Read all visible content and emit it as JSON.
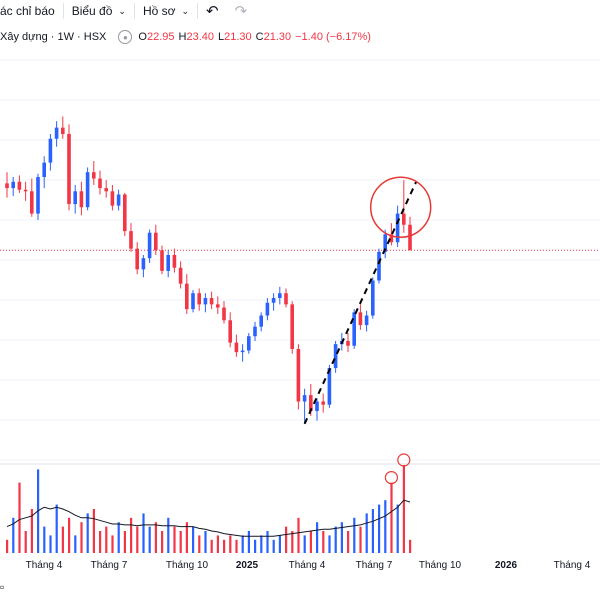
{
  "toolbar": {
    "indicators_label": "ác chỉ báo",
    "chart_label": "Biểu đồ",
    "profile_label": "Hồ sơ",
    "undo_icon": "undo-icon",
    "redo_icon": "redo-icon"
  },
  "legend": {
    "symbol": "Xây dựng · 1W · HSX",
    "o_label": "O",
    "o_value": "22.95",
    "h_label": "H",
    "h_value": "23.40",
    "l_label": "L",
    "l_value": "21.30",
    "c_label": "C",
    "c_value": "21.30",
    "change": "−1.40 (−6.17%)"
  },
  "colors": {
    "up": "#2962ff",
    "down": "#f23645",
    "ma_line": "#131722",
    "annotation": "#e53935",
    "grid": "#f0f3fa"
  },
  "chart_data": {
    "type": "candlestick",
    "x_tick_labels": [
      "Tháng 4",
      "Tháng 7",
      "Tháng 10",
      "2025",
      "Tháng 4",
      "Tháng 7",
      "Tháng 10",
      "2026",
      "Tháng 4"
    ],
    "y_range": [
      8,
      34
    ],
    "last_price": 21.3,
    "candles": [
      [
        25.5,
        26.2,
        24.6,
        25.2
      ],
      [
        25.2,
        25.9,
        24.7,
        25.6
      ],
      [
        25.6,
        26.0,
        24.9,
        25.1
      ],
      [
        25.1,
        25.6,
        24.4,
        25.0
      ],
      [
        25.0,
        25.8,
        23.4,
        23.6
      ],
      [
        23.6,
        26.1,
        23.2,
        25.9
      ],
      [
        25.9,
        27.2,
        25.2,
        26.8
      ],
      [
        26.8,
        28.6,
        26.3,
        28.3
      ],
      [
        28.3,
        29.4,
        27.8,
        29.0
      ],
      [
        29.0,
        29.7,
        28.3,
        28.6
      ],
      [
        28.6,
        29.2,
        23.8,
        24.2
      ],
      [
        24.2,
        25.4,
        23.6,
        25.0
      ],
      [
        25.0,
        25.6,
        23.5,
        24.0
      ],
      [
        24.0,
        26.5,
        23.8,
        26.2
      ],
      [
        26.2,
        26.9,
        25.4,
        25.8
      ],
      [
        25.8,
        26.3,
        24.8,
        25.2
      ],
      [
        25.2,
        25.7,
        24.6,
        25.0
      ],
      [
        25.0,
        25.4,
        23.8,
        24.1
      ],
      [
        24.1,
        25.1,
        23.8,
        24.8
      ],
      [
        24.8,
        24.9,
        22.2,
        22.5
      ],
      [
        22.5,
        23.0,
        21.2,
        21.4
      ],
      [
        21.4,
        21.8,
        19.8,
        20.1
      ],
      [
        20.1,
        21.0,
        19.6,
        20.8
      ],
      [
        20.8,
        22.6,
        20.5,
        22.4
      ],
      [
        22.4,
        22.9,
        21.0,
        21.3
      ],
      [
        21.3,
        21.6,
        19.8,
        20.0
      ],
      [
        20.0,
        21.3,
        19.6,
        21.0
      ],
      [
        21.0,
        21.4,
        19.9,
        20.2
      ],
      [
        20.2,
        20.6,
        18.9,
        19.2
      ],
      [
        19.2,
        19.8,
        17.3,
        17.6
      ],
      [
        17.6,
        18.8,
        17.4,
        18.6
      ],
      [
        18.6,
        18.9,
        17.5,
        17.9
      ],
      [
        17.9,
        18.6,
        17.4,
        18.3
      ],
      [
        18.3,
        18.7,
        17.6,
        17.9
      ],
      [
        17.9,
        18.4,
        17.3,
        17.7
      ],
      [
        17.7,
        18.1,
        16.7,
        16.9
      ],
      [
        16.9,
        17.4,
        15.2,
        15.5
      ],
      [
        15.5,
        16.0,
        14.6,
        14.9
      ],
      [
        14.9,
        15.4,
        14.3,
        15.0
      ],
      [
        15.0,
        16.1,
        14.8,
        15.9
      ],
      [
        15.9,
        16.8,
        15.6,
        16.5
      ],
      [
        16.5,
        17.4,
        16.2,
        17.2
      ],
      [
        17.2,
        18.3,
        16.9,
        18.0
      ],
      [
        18.0,
        18.6,
        17.5,
        18.3
      ],
      [
        18.3,
        19.0,
        17.9,
        18.6
      ],
      [
        18.6,
        18.9,
        17.7,
        17.9
      ],
      [
        17.9,
        18.1,
        14.8,
        15.1
      ],
      [
        15.1,
        15.4,
        11.3,
        11.8
      ],
      [
        11.8,
        12.6,
        10.4,
        12.2
      ],
      [
        12.2,
        12.9,
        10.9,
        11.2
      ],
      [
        11.2,
        12.0,
        10.6,
        11.8
      ],
      [
        11.8,
        12.3,
        11.1,
        11.6
      ],
      [
        11.6,
        14.1,
        11.4,
        13.9
      ],
      [
        13.9,
        15.6,
        13.6,
        15.4
      ],
      [
        15.4,
        16.1,
        15.0,
        15.6
      ],
      [
        15.6,
        16.1,
        14.9,
        15.3
      ],
      [
        15.3,
        17.6,
        15.1,
        17.4
      ],
      [
        17.4,
        17.9,
        16.3,
        16.6
      ],
      [
        16.6,
        17.5,
        16.2,
        17.2
      ],
      [
        17.2,
        19.6,
        17.0,
        19.4
      ],
      [
        19.4,
        21.4,
        19.2,
        21.2
      ],
      [
        21.2,
        22.6,
        20.8,
        22.3
      ],
      [
        22.3,
        23.0,
        21.6,
        21.8
      ],
      [
        21.8,
        24.1,
        21.5,
        23.6
      ],
      [
        23.6,
        25.7,
        22.4,
        22.9
      ],
      [
        22.9,
        23.4,
        21.3,
        21.3
      ]
    ],
    "volume": [
      0.15,
      0.4,
      0.8,
      0.25,
      0.5,
      0.95,
      0.3,
      0.2,
      0.55,
      0.3,
      0.4,
      0.2,
      0.35,
      0.45,
      0.5,
      0.25,
      0.3,
      0.2,
      0.35,
      0.25,
      0.4,
      0.3,
      0.45,
      0.3,
      0.35,
      0.25,
      0.4,
      0.3,
      0.25,
      0.35,
      0.3,
      0.2,
      0.25,
      0.15,
      0.2,
      0.15,
      0.2,
      0.15,
      0.2,
      0.25,
      0.15,
      0.2,
      0.25,
      0.15,
      0.2,
      0.3,
      0.25,
      0.4,
      0.2,
      0.25,
      0.35,
      0.25,
      0.2,
      0.3,
      0.35,
      0.25,
      0.4,
      0.3,
      0.45,
      0.5,
      0.55,
      0.6,
      0.8,
      0.55,
      1.0,
      0.15
    ],
    "volume_ma": [
      0.3,
      0.33,
      0.38,
      0.4,
      0.42,
      0.48,
      0.52,
      0.5,
      0.52,
      0.5,
      0.47,
      0.43,
      0.4,
      0.4,
      0.39,
      0.37,
      0.35,
      0.33,
      0.33,
      0.32,
      0.32,
      0.31,
      0.32,
      0.32,
      0.32,
      0.31,
      0.31,
      0.31,
      0.3,
      0.3,
      0.3,
      0.28,
      0.27,
      0.25,
      0.24,
      0.22,
      0.21,
      0.2,
      0.19,
      0.19,
      0.19,
      0.19,
      0.19,
      0.19,
      0.2,
      0.21,
      0.22,
      0.23,
      0.24,
      0.25,
      0.26,
      0.27,
      0.27,
      0.28,
      0.29,
      0.3,
      0.31,
      0.32,
      0.34,
      0.36,
      0.39,
      0.42,
      0.47,
      0.52,
      0.6,
      0.58
    ],
    "trendline": {
      "from": {
        "candle": 48,
        "price": 10.4
      },
      "to": {
        "candle": 66,
        "price": 25.6
      }
    },
    "circle_annotation": {
      "candle": 63.5,
      "price": 24.0
    },
    "volume_highlights": [
      62,
      64
    ]
  }
}
